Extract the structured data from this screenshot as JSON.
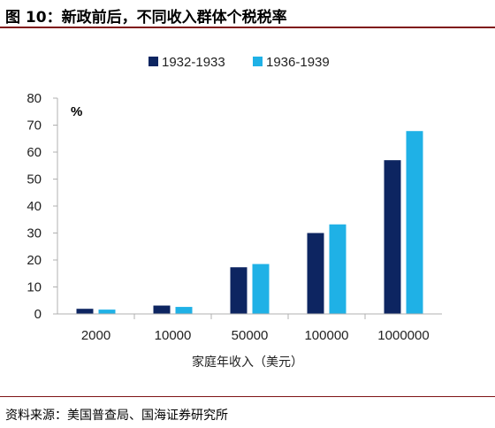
{
  "figure": {
    "title": "图 10：新政前后，不同收入群体个税税率",
    "source": "资料来源：美国普查局、国海证券研究所"
  },
  "chart_data": {
    "type": "bar",
    "categories": [
      "2000",
      "10000",
      "50000",
      "100000",
      "1000000"
    ],
    "series": [
      {
        "name": "1932-1933",
        "color": "#0d2561",
        "values": [
          1.9,
          3.1,
          17.3,
          30.0,
          57.0
        ]
      },
      {
        "name": "1936-1939",
        "color": "#1fb1e6",
        "values": [
          1.6,
          2.6,
          18.5,
          33.2,
          67.8
        ]
      }
    ],
    "xlabel": "家庭年收入（美元）",
    "ylabel": "%",
    "ylim": [
      0,
      80
    ],
    "yticks": [
      0,
      10,
      20,
      30,
      40,
      50,
      60,
      70,
      80
    ],
    "legend_position": "top",
    "grid": false
  }
}
